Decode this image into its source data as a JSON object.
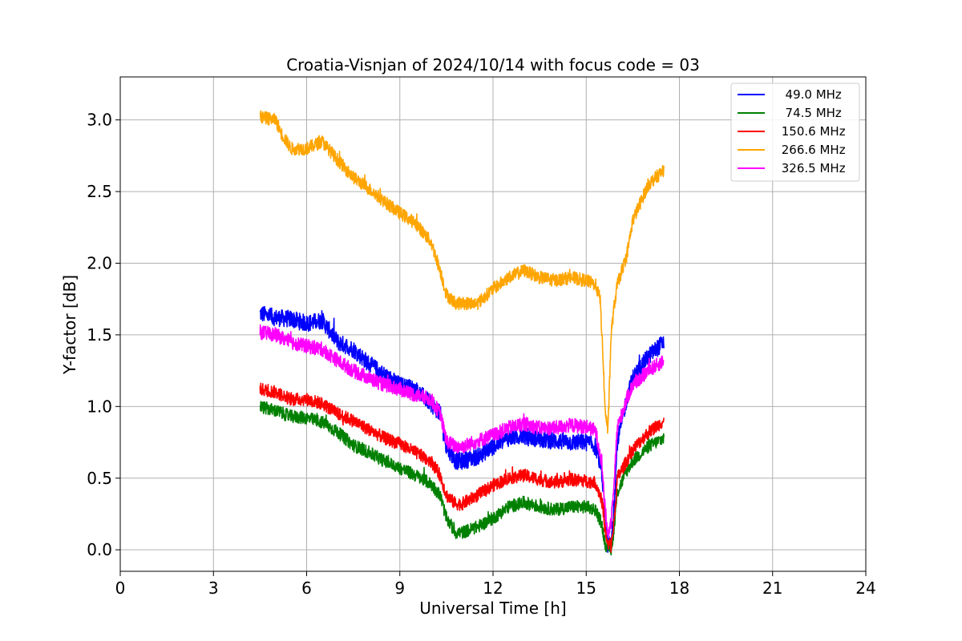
{
  "chart_data": {
    "type": "line",
    "title": "Croatia-Visnjan of 2024/10/14 with focus code = 03",
    "xlabel": "Universal Time [h]",
    "ylabel": "Y-factor [dB]",
    "xlim": [
      0,
      24
    ],
    "ylim": [
      -0.15,
      3.3
    ],
    "xticks": [
      0,
      3,
      6,
      9,
      12,
      15,
      18,
      21,
      24
    ],
    "xtick_labels": [
      "0",
      "3",
      "6",
      "9",
      "12",
      "15",
      "18",
      "21",
      "24"
    ],
    "yticks": [
      0.0,
      0.5,
      1.0,
      1.5,
      2.0,
      2.5,
      3.0
    ],
    "ytick_labels": [
      "0.0",
      "0.5",
      "1.0",
      "1.5",
      "2.0",
      "2.5",
      "3.0"
    ],
    "grid": true,
    "legend_position": "top-right",
    "series": [
      {
        "name": "49.0 MHz",
        "legend_label": "  49.0 MHz",
        "color": "#0000ff",
        "noise": 0.06,
        "x": [
          4.5,
          5.0,
          5.5,
          6.0,
          6.5,
          7.0,
          7.5,
          8.0,
          8.5,
          9.0,
          9.5,
          10.0,
          10.3,
          10.5,
          10.8,
          11.0,
          11.5,
          12.0,
          12.5,
          13.0,
          13.5,
          14.0,
          14.5,
          15.0,
          15.3,
          15.5,
          15.6,
          15.7,
          15.75,
          15.8,
          15.9,
          16.0,
          16.3,
          16.5,
          17.0,
          17.5
        ],
        "y": [
          1.65,
          1.62,
          1.61,
          1.58,
          1.6,
          1.45,
          1.4,
          1.3,
          1.22,
          1.15,
          1.12,
          1.02,
          0.95,
          0.72,
          0.62,
          0.62,
          0.65,
          0.72,
          0.78,
          0.8,
          0.77,
          0.76,
          0.75,
          0.75,
          0.72,
          0.55,
          0.25,
          0.02,
          0.05,
          0.02,
          0.3,
          0.75,
          1.05,
          1.2,
          1.35,
          1.45
        ]
      },
      {
        "name": "74.5 MHz",
        "legend_label": "  74.5 MHz",
        "color": "#008000",
        "noise": 0.045,
        "x": [
          4.5,
          5.0,
          5.5,
          6.0,
          6.5,
          7.0,
          7.5,
          8.0,
          8.5,
          9.0,
          9.5,
          10.0,
          10.3,
          10.5,
          10.8,
          11.0,
          11.5,
          12.0,
          12.5,
          13.0,
          13.5,
          14.0,
          14.5,
          15.0,
          15.3,
          15.5,
          15.6,
          15.7,
          15.75,
          15.8,
          15.9,
          16.0,
          16.3,
          16.5,
          17.0,
          17.5
        ],
        "y": [
          1.0,
          0.97,
          0.93,
          0.92,
          0.89,
          0.82,
          0.73,
          0.68,
          0.62,
          0.57,
          0.52,
          0.46,
          0.38,
          0.22,
          0.12,
          0.12,
          0.16,
          0.22,
          0.3,
          0.33,
          0.3,
          0.28,
          0.3,
          0.3,
          0.28,
          0.18,
          0.05,
          0.0,
          0.02,
          0.0,
          0.15,
          0.4,
          0.55,
          0.62,
          0.72,
          0.78
        ]
      },
      {
        "name": "150.6 MHz",
        "legend_label": " 150.6 MHz",
        "color": "#ff0000",
        "noise": 0.045,
        "x": [
          4.5,
          5.0,
          5.5,
          6.0,
          6.5,
          7.0,
          7.5,
          8.0,
          8.5,
          9.0,
          9.5,
          10.0,
          10.3,
          10.5,
          10.8,
          11.0,
          11.5,
          12.0,
          12.5,
          13.0,
          13.5,
          14.0,
          14.5,
          15.0,
          15.3,
          15.5,
          15.6,
          15.7,
          15.75,
          15.8,
          15.9,
          16.0,
          16.3,
          16.5,
          17.0,
          17.5
        ],
        "y": [
          1.12,
          1.1,
          1.05,
          1.05,
          1.02,
          0.95,
          0.9,
          0.84,
          0.78,
          0.74,
          0.68,
          0.62,
          0.52,
          0.38,
          0.32,
          0.32,
          0.38,
          0.45,
          0.5,
          0.52,
          0.49,
          0.47,
          0.49,
          0.48,
          0.47,
          0.35,
          0.15,
          0.02,
          0.05,
          0.02,
          0.2,
          0.5,
          0.62,
          0.7,
          0.82,
          0.9
        ]
      },
      {
        "name": "266.6 MHz",
        "legend_label": " 266.6 MHz",
        "color": "#ffa500",
        "noise": 0.045,
        "x": [
          4.5,
          5.0,
          5.2,
          5.5,
          6.0,
          6.5,
          7.0,
          7.5,
          8.0,
          8.5,
          9.0,
          9.5,
          10.0,
          10.3,
          10.5,
          10.8,
          11.0,
          11.5,
          12.0,
          12.5,
          13.0,
          13.5,
          14.0,
          14.5,
          15.0,
          15.3,
          15.45,
          15.55,
          15.6,
          15.7,
          15.8,
          15.9,
          16.0,
          16.3,
          16.5,
          17.0,
          17.5
        ],
        "y": [
          3.02,
          3.0,
          2.9,
          2.8,
          2.8,
          2.85,
          2.72,
          2.6,
          2.52,
          2.43,
          2.35,
          2.28,
          2.15,
          1.95,
          1.78,
          1.72,
          1.72,
          1.72,
          1.82,
          1.9,
          1.95,
          1.9,
          1.88,
          1.9,
          1.88,
          1.85,
          1.75,
          1.3,
          1.0,
          0.82,
          1.5,
          1.7,
          1.85,
          2.05,
          2.3,
          2.55,
          2.65
        ]
      },
      {
        "name": "326.5 MHz",
        "legend_label": " 326.5 MHz",
        "color": "#ff00ff",
        "noise": 0.05,
        "x": [
          4.5,
          5.0,
          5.5,
          6.0,
          6.5,
          7.0,
          7.5,
          8.0,
          8.5,
          9.0,
          9.5,
          10.0,
          10.3,
          10.5,
          10.8,
          11.0,
          11.5,
          12.0,
          12.5,
          13.0,
          13.5,
          14.0,
          14.5,
          15.0,
          15.3,
          15.5,
          15.6,
          15.7,
          15.75,
          15.8,
          15.9,
          16.0,
          16.3,
          16.5,
          17.0,
          17.5
        ],
        "y": [
          1.52,
          1.5,
          1.45,
          1.42,
          1.4,
          1.32,
          1.25,
          1.2,
          1.15,
          1.12,
          1.08,
          1.05,
          0.95,
          0.76,
          0.72,
          0.72,
          0.76,
          0.8,
          0.85,
          0.88,
          0.85,
          0.85,
          0.87,
          0.86,
          0.83,
          0.62,
          0.3,
          0.1,
          0.15,
          0.2,
          0.5,
          0.85,
          1.05,
          1.15,
          1.25,
          1.32
        ]
      }
    ]
  }
}
